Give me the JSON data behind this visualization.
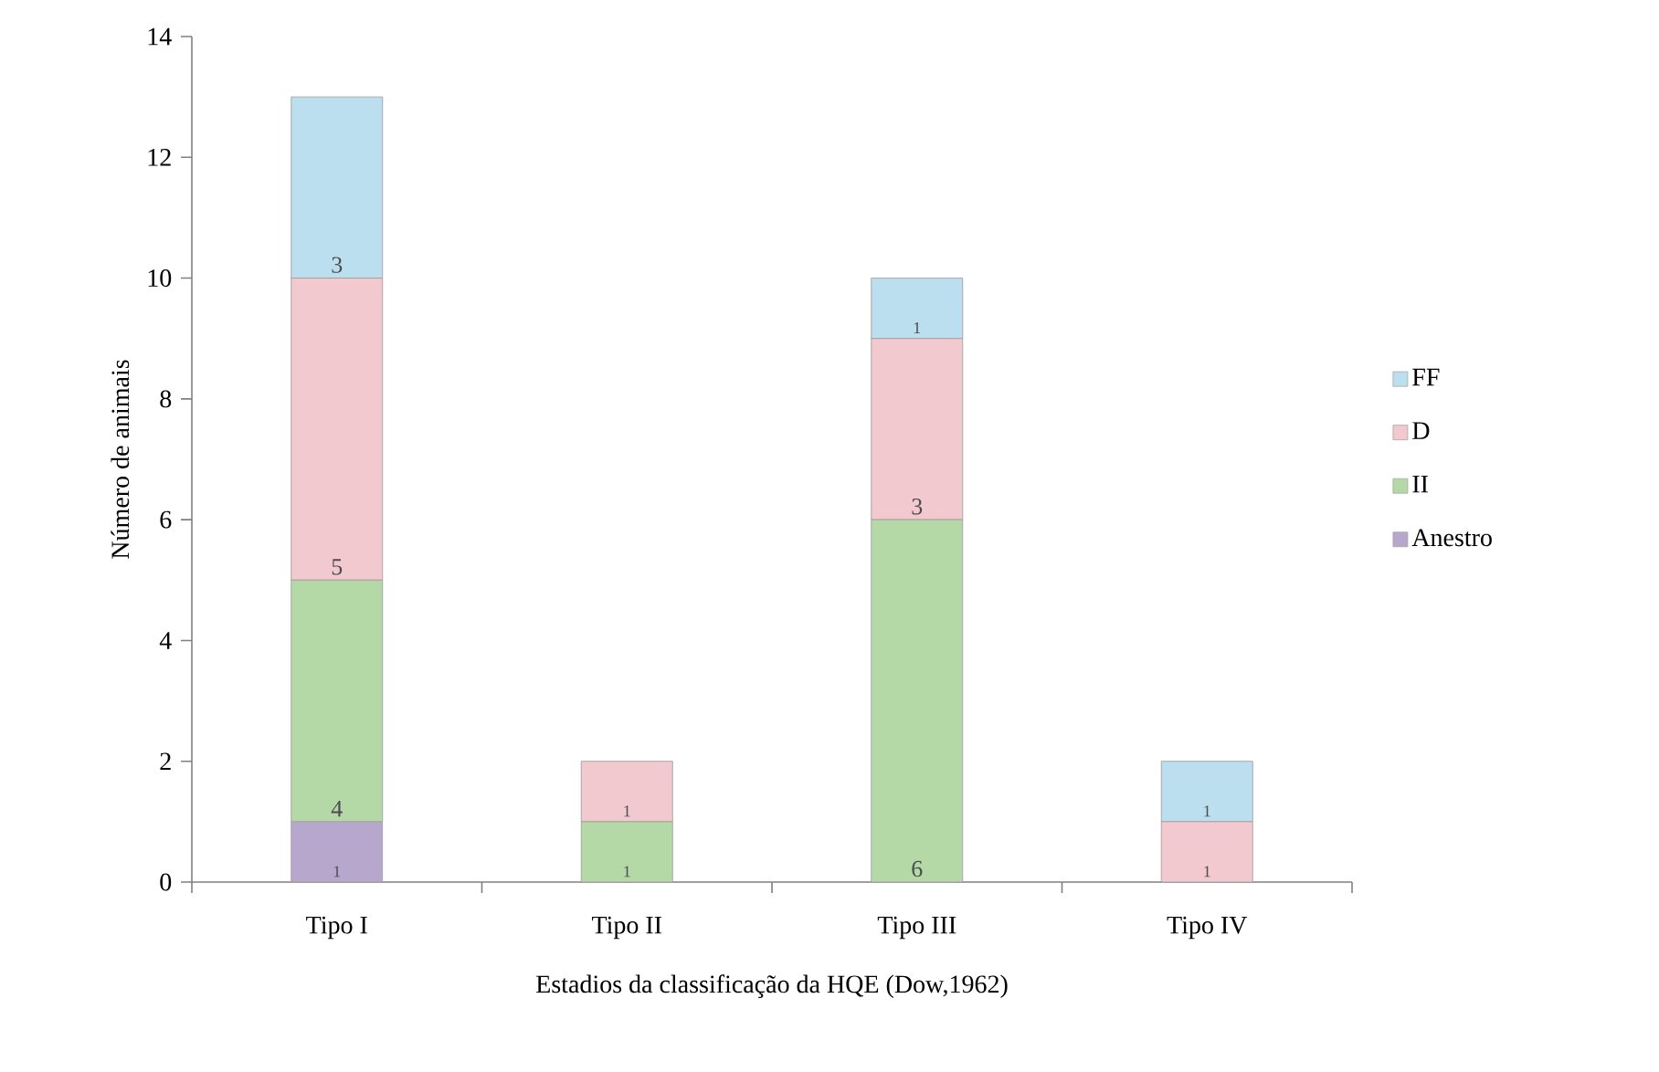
{
  "chart_data": {
    "type": "bar",
    "stacked": true,
    "xlabel": "Estadios da classificação da HQE (Dow,1962)",
    "ylabel": "Número de animais",
    "categories": [
      "Tipo I",
      "Tipo II",
      "Tipo III",
      "Tipo IV"
    ],
    "ylim": [
      0,
      14
    ],
    "yticks": [
      0,
      2,
      4,
      6,
      8,
      10,
      12,
      14
    ],
    "legend": "right",
    "grid": false,
    "series": [
      {
        "name": "Anestro",
        "color": "#b8a7cc",
        "values": [
          1,
          0,
          0,
          0
        ],
        "value_labels": [
          "1",
          null,
          null,
          null
        ]
      },
      {
        "name": "II",
        "color": "#b4d9a6",
        "values": [
          4,
          1,
          6,
          0
        ],
        "value_labels": [
          "4",
          "1",
          "6",
          null
        ]
      },
      {
        "name": "D",
        "color": "#f2c9cf",
        "values": [
          5,
          1,
          3,
          1
        ],
        "value_labels": [
          "5",
          "1",
          "3",
          "1"
        ]
      },
      {
        "name": "FF",
        "color": "#bcdff0",
        "values": [
          3,
          0,
          1,
          1
        ],
        "value_labels": [
          "3",
          null,
          "1",
          "1"
        ]
      }
    ]
  }
}
